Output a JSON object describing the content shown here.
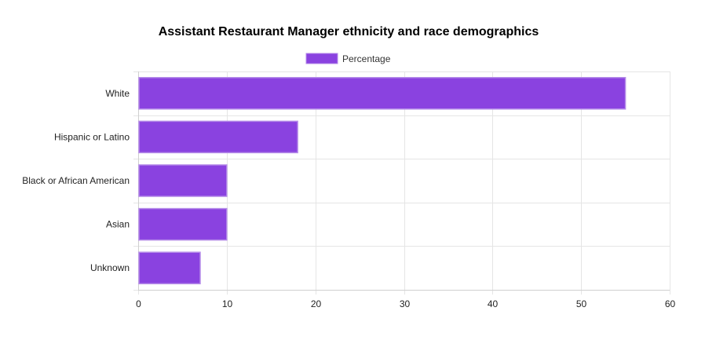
{
  "chart_data": {
    "type": "bar",
    "orientation": "horizontal",
    "title": "Assistant Restaurant Manager ethnicity and race demographics",
    "categories": [
      "White",
      "Hispanic or Latino",
      "Black or African American",
      "Asian",
      "Unknown"
    ],
    "series": [
      {
        "name": "Percentage",
        "values": [
          55,
          18,
          10,
          10,
          7
        ],
        "color": "#8a42e0",
        "border_color": "#b48ae8"
      }
    ],
    "xlim": [
      0,
      60
    ],
    "xticks": [
      0,
      10,
      20,
      30,
      40,
      50,
      60
    ],
    "grid": true,
    "legend": "top-center"
  }
}
